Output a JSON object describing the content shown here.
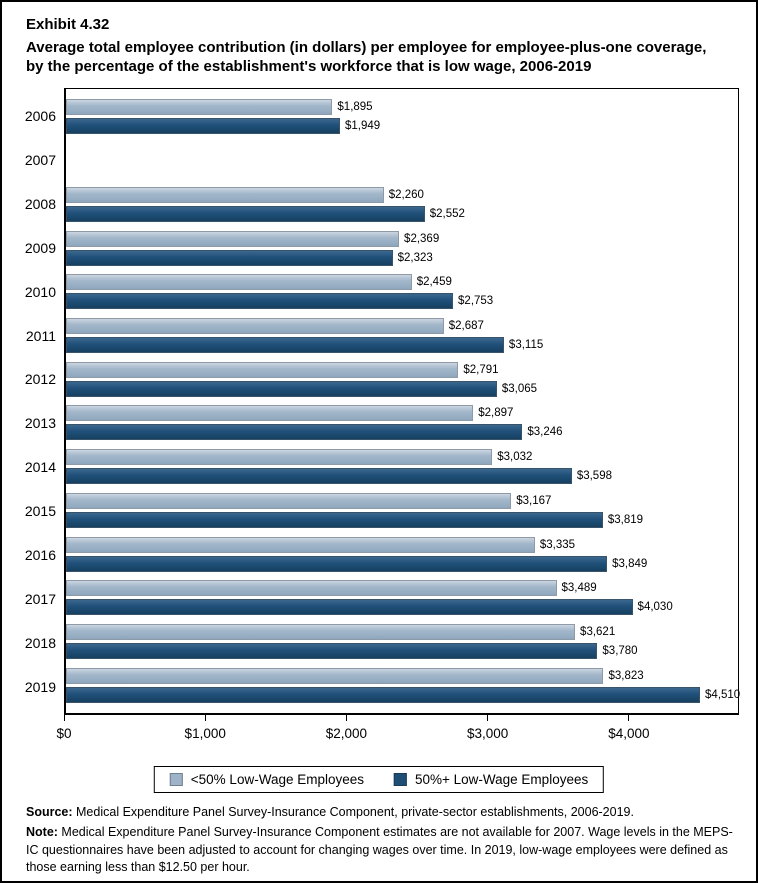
{
  "header": {
    "exhibit_label": "Exhibit 4.32",
    "title": "Average total employee contribution (in dollars) per employee for employee-plus-one coverage, by the percentage of the establishment's workforce that is low wage, 2006-2019"
  },
  "chart_data": {
    "type": "bar",
    "orientation": "horizontal",
    "title": "Average total employee contribution (in dollars) per employee for employee-plus-one coverage, by the percentage of the establishment's workforce that is low wage, 2006-2019",
    "categories": [
      "2006",
      "2007",
      "2008",
      "2009",
      "2010",
      "2011",
      "2012",
      "2013",
      "2014",
      "2015",
      "2016",
      "2017",
      "2018",
      "2019"
    ],
    "series": [
      {
        "name": "<50% Low-Wage Employees",
        "color": "#9FB3C8",
        "values": [
          1895,
          null,
          2260,
          2369,
          2459,
          2687,
          2791,
          2897,
          3032,
          3167,
          3335,
          3489,
          3621,
          3823
        ],
        "labels": [
          "$1,895",
          null,
          "$2,260",
          "$2,369",
          "$2,459",
          "$2,687",
          "$2,791",
          "$2,897",
          "$3,032",
          "$3,167",
          "$3,335",
          "$3,489",
          "$3,621",
          "$3,823"
        ]
      },
      {
        "name": "50%+ Low-Wage Employees",
        "color": "#1F4E74",
        "values": [
          1949,
          null,
          2552,
          2323,
          2753,
          3115,
          3065,
          3246,
          3598,
          3819,
          3849,
          4030,
          3780,
          4510
        ],
        "labels": [
          "$1,949",
          null,
          "$2,552",
          "$2,323",
          "$2,753",
          "$3,115",
          "$3,065",
          "$3,246",
          "$3,598",
          "$3,819",
          "$3,849",
          "$4,030",
          "$3,780",
          "$4,510"
        ]
      }
    ],
    "xlabel": "",
    "ylabel": "",
    "xlim": [
      0,
      4780
    ],
    "xticks": [
      {
        "value": 0,
        "label": "$0"
      },
      {
        "value": 1000,
        "label": "$1,000"
      },
      {
        "value": 2000,
        "label": "$2,000"
      },
      {
        "value": 3000,
        "label": "$3,000"
      },
      {
        "value": 4000,
        "label": "$4,000"
      }
    ],
    "grid": false,
    "legend_position": "bottom",
    "note": "No data shown for 2007"
  },
  "legend": {
    "items": [
      {
        "label": "<50% Low-Wage Employees",
        "color": "#9FB3C8"
      },
      {
        "label": "50%+ Low-Wage Employees",
        "color": "#1F4E74"
      }
    ]
  },
  "footer": {
    "source_label": "Source:",
    "source_text": " Medical Expenditure Panel Survey-Insurance Component, private-sector establishments, 2006-2019.",
    "note_label": "Note:",
    "note_text": " Medical Expenditure Panel Survey-Insurance Component estimates are not available for 2007. Wage levels in the MEPS-IC questionnaires have been adjusted to account for changing wages over time. In 2019, low-wage employees were defined as those earning less than $12.50 per hour."
  }
}
